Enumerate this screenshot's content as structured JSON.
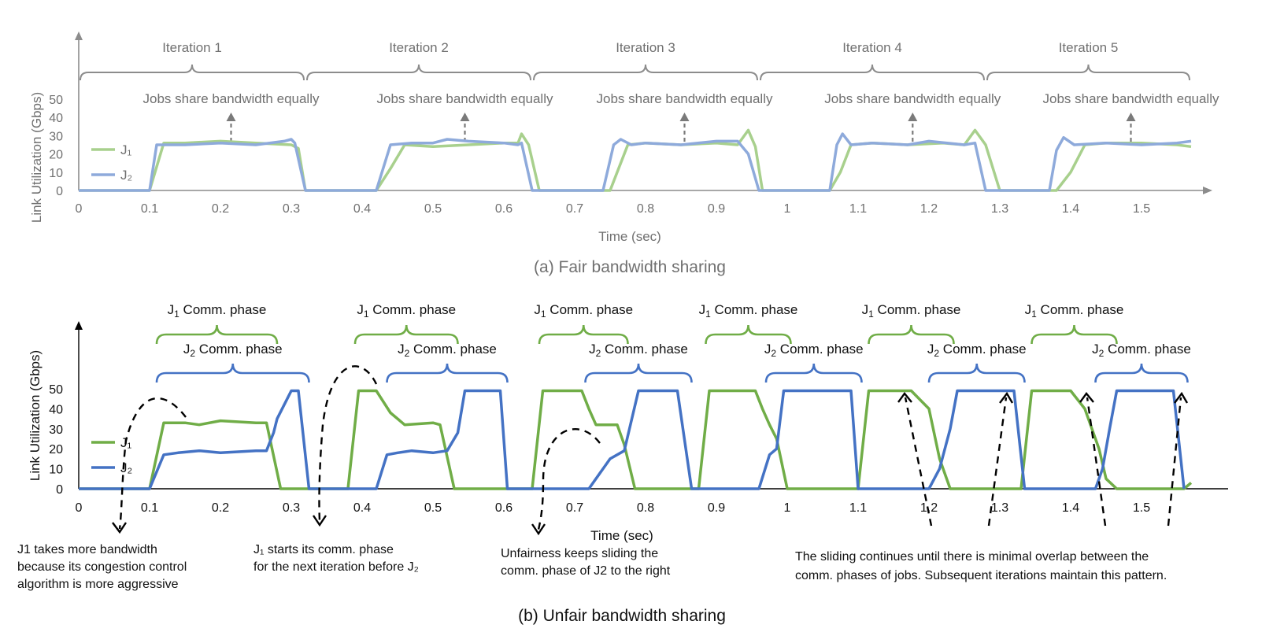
{
  "colors": {
    "j1_light": "#a8d08d",
    "j2_light": "#8eaadb",
    "j1_dark": "#70ad47",
    "j2_dark": "#4472c4",
    "gray": "#8c8c8c"
  },
  "chart_data": [
    {
      "type": "line",
      "caption": "(a) Fair bandwidth sharing",
      "xlabel": "Time (sec)",
      "ylabel": "Link Utilization (Gbps)",
      "xlim": [
        0,
        1.57
      ],
      "ylim": [
        0,
        50
      ],
      "yticks": [
        "0",
        "10",
        "20",
        "30",
        "40",
        "50"
      ],
      "xticks": [
        "0",
        "0.1",
        "0.2",
        "0.3",
        "0.4",
        "0.5",
        "0.6",
        "0.7",
        "0.8",
        "0.9",
        "1",
        "1.1",
        "1.2",
        "1.3",
        "1.4",
        "1.5"
      ],
      "legend": [
        "J₁",
        "J₂"
      ],
      "iterations": [
        {
          "label": "Iteration 1",
          "start": 0,
          "end": 0.32
        },
        {
          "label": "Iteration 2",
          "start": 0.32,
          "end": 0.64
        },
        {
          "label": "Iteration 3",
          "start": 0.64,
          "end": 0.96
        },
        {
          "label": "Iteration 4",
          "start": 0.96,
          "end": 1.28
        },
        {
          "label": "Iteration 5",
          "start": 1.28,
          "end": 1.57
        }
      ],
      "annotations": [
        {
          "text": "Jobs share bandwidth equally",
          "x": 0.215
        },
        {
          "text": "Jobs share bandwidth equally",
          "x": 0.545
        },
        {
          "text": "Jobs share bandwidth equally",
          "x": 0.855
        },
        {
          "text": "Jobs share bandwidth equally",
          "x": 1.177
        },
        {
          "text": "Jobs share bandwidth equally",
          "x": 1.485
        }
      ],
      "series": [
        {
          "name": "J₁",
          "x": [
            0,
            0.1,
            0.12,
            0.15,
            0.2,
            0.25,
            0.3,
            0.31,
            0.32,
            0.42,
            0.44,
            0.46,
            0.5,
            0.55,
            0.6,
            0.62,
            0.625,
            0.635,
            0.65,
            0.75,
            0.76,
            0.775,
            0.8,
            0.85,
            0.9,
            0.93,
            0.945,
            0.955,
            0.965,
            1.06,
            1.075,
            1.09,
            1.12,
            1.17,
            1.22,
            1.25,
            1.265,
            1.28,
            1.3,
            1.38,
            1.4,
            1.42,
            1.45,
            1.5,
            1.55,
            1.57
          ],
          "y": [
            0,
            0,
            26,
            26,
            27,
            26,
            25,
            23,
            0,
            0,
            12,
            25,
            24,
            25,
            26,
            26,
            31,
            25,
            0,
            0,
            10,
            25,
            26,
            25,
            26,
            25,
            33,
            24,
            0,
            0,
            10,
            25,
            26,
            25,
            26,
            25,
            33,
            25,
            0,
            0,
            10,
            25,
            26,
            26,
            25,
            24
          ]
        },
        {
          "name": "J₂",
          "x": [
            0,
            0.1,
            0.11,
            0.15,
            0.2,
            0.25,
            0.29,
            0.3,
            0.305,
            0.32,
            0.42,
            0.44,
            0.47,
            0.5,
            0.52,
            0.55,
            0.6,
            0.62,
            0.625,
            0.64,
            0.74,
            0.755,
            0.765,
            0.78,
            0.8,
            0.85,
            0.9,
            0.93,
            0.945,
            0.96,
            1.06,
            1.07,
            1.078,
            1.09,
            1.12,
            1.17,
            1.2,
            1.25,
            1.265,
            1.28,
            1.37,
            1.38,
            1.39,
            1.405,
            1.45,
            1.5,
            1.55,
            1.57
          ],
          "y": [
            0,
            0,
            25,
            25,
            26,
            25,
            27,
            28,
            26,
            0,
            0,
            25,
            26,
            26,
            28,
            27,
            26,
            25,
            26,
            0,
            0,
            25,
            28,
            25,
            26,
            25,
            27,
            27,
            20,
            0,
            0,
            25,
            31,
            25,
            26,
            25,
            27,
            25,
            26,
            0,
            0,
            22,
            29,
            25,
            26,
            25,
            26,
            27
          ]
        }
      ]
    },
    {
      "type": "line",
      "caption": "(b) Unfair bandwidth sharing",
      "xlabel": "Time (sec)",
      "ylabel": "Link Utilization (Gbps)",
      "xlim": [
        0,
        1.57
      ],
      "ylim": [
        0,
        50
      ],
      "yticks": [
        "0",
        "10",
        "20",
        "30",
        "40",
        "50"
      ],
      "xticks": [
        "0",
        "0.1",
        "0.2",
        "0.3",
        "0.4",
        "0.5",
        "0.6",
        "0.7",
        "0.8",
        "0.9",
        "1",
        "1.1",
        "1.2",
        "1.3",
        "1.4",
        "1.5"
      ],
      "legend": [
        "J₁",
        "J₂"
      ],
      "phase_label_j1": "Comm. phase",
      "phase_label_j2": "Comm. phase",
      "j1_phases": [
        [
          0.11,
          0.28
        ],
        [
          0.39,
          0.535
        ],
        [
          0.65,
          0.775
        ],
        [
          0.885,
          1.005
        ],
        [
          1.115,
          1.235
        ],
        [
          1.345,
          1.465
        ]
      ],
      "j2_phases": [
        [
          0.11,
          0.325
        ],
        [
          0.435,
          0.605
        ],
        [
          0.715,
          0.865
        ],
        [
          0.97,
          1.105
        ],
        [
          1.2,
          1.335
        ],
        [
          1.435,
          1.565
        ]
      ],
      "annotations": [
        {
          "lines": [
            "J1 takes more bandwidth",
            "because its congestion control",
            "algorithm is more aggressive"
          ]
        },
        {
          "lines": [
            "J₁ starts its comm. phase",
            "for the next iteration before J₂"
          ]
        },
        {
          "lines": [
            "Unfairness keeps sliding the",
            "comm. phase of J2 to the right"
          ]
        },
        {
          "lines": [
            "The sliding continues until there is minimal overlap between the",
            "comm. phases of jobs. Subsequent iterations maintain this pattern."
          ]
        }
      ],
      "series": [
        {
          "name": "J₁",
          "x": [
            0,
            0.1,
            0.12,
            0.15,
            0.17,
            0.2,
            0.25,
            0.265,
            0.285,
            0.38,
            0.395,
            0.42,
            0.44,
            0.46,
            0.5,
            0.51,
            0.53,
            0.64,
            0.655,
            0.71,
            0.72,
            0.73,
            0.76,
            0.77,
            0.785,
            0.875,
            0.89,
            0.955,
            0.965,
            0.975,
            0.985,
            1.0,
            1.1,
            1.115,
            1.175,
            1.2,
            1.215,
            1.23,
            1.33,
            1.345,
            1.4,
            1.42,
            1.44,
            1.45,
            1.465,
            1.56,
            1.57
          ],
          "y": [
            0,
            0,
            33,
            33,
            32,
            34,
            33,
            33,
            0,
            0,
            49,
            49,
            38,
            32,
            33,
            32,
            0,
            0,
            49,
            49,
            40,
            32,
            32,
            22,
            0,
            0,
            49,
            49,
            40,
            32,
            25,
            0,
            0,
            49,
            49,
            40,
            15,
            0,
            0,
            49,
            49,
            40,
            20,
            5,
            0,
            0,
            3
          ]
        },
        {
          "name": "J₂",
          "x": [
            0,
            0.1,
            0.12,
            0.14,
            0.17,
            0.2,
            0.25,
            0.265,
            0.275,
            0.28,
            0.3,
            0.31,
            0.325,
            0.42,
            0.435,
            0.45,
            0.47,
            0.5,
            0.52,
            0.535,
            0.545,
            0.56,
            0.595,
            0.605,
            0.72,
            0.75,
            0.77,
            0.79,
            0.845,
            0.865,
            0.96,
            0.975,
            0.985,
            0.995,
            1.09,
            1.1,
            1.2,
            1.215,
            1.23,
            1.24,
            1.32,
            1.335,
            1.435,
            1.445,
            1.455,
            1.465,
            1.545,
            1.56
          ],
          "y": [
            0,
            0,
            17,
            18,
            19,
            18,
            19,
            19,
            28,
            35,
            49,
            49,
            0,
            0,
            17,
            18,
            19,
            18,
            19,
            28,
            49,
            49,
            49,
            0,
            0,
            15,
            19,
            49,
            49,
            0,
            0,
            17,
            20,
            49,
            49,
            0,
            0,
            10,
            30,
            49,
            49,
            0,
            0,
            10,
            30,
            49,
            49,
            0
          ]
        }
      ]
    }
  ]
}
